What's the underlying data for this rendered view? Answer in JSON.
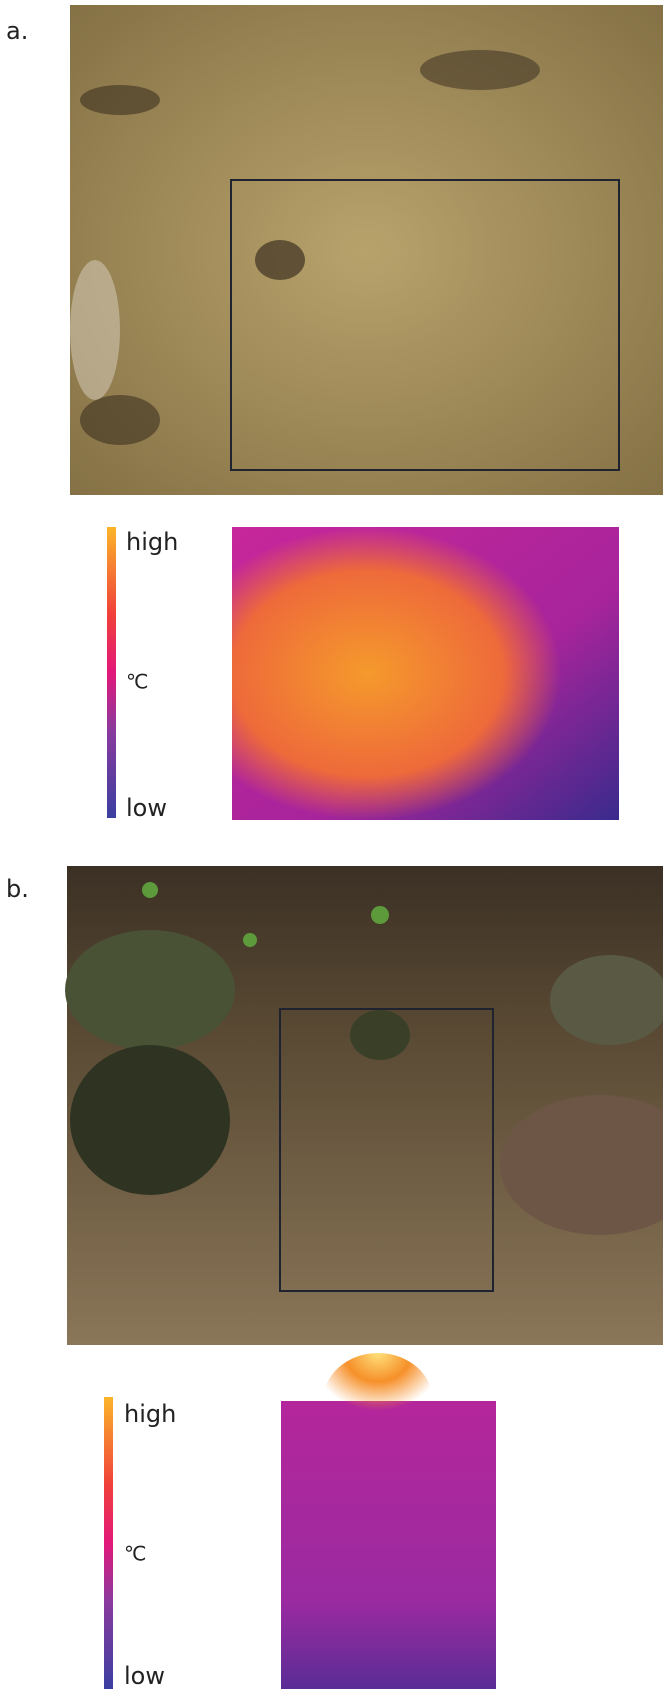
{
  "panels": [
    {
      "label": "a.",
      "colorbar": {
        "high": "high",
        "unit": "℃",
        "low": "low"
      }
    },
    {
      "label": "b.",
      "colorbar": {
        "high": "high",
        "unit": "℃",
        "low": "low"
      }
    }
  ]
}
